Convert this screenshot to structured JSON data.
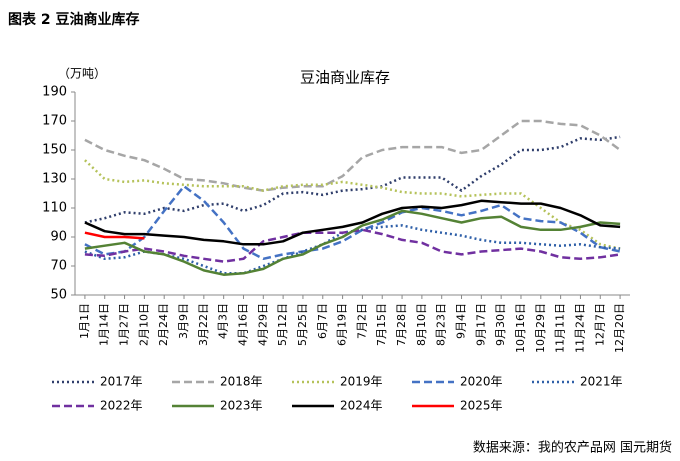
{
  "chart_data": {
    "type": "line",
    "figure_label": "图表 2 豆油商业库存",
    "title": "豆油商业库存",
    "y_label": "（万吨）",
    "source": "数据来源：我的农产品网 国元期货",
    "categories": [
      "1月1日",
      "1月14日",
      "1月27日",
      "2月10日",
      "2月24日",
      "3月9日",
      "3月22日",
      "4月3日",
      "4月16日",
      "4月29日",
      "5月12日",
      "5月25日",
      "6月7日",
      "6月19日",
      "7月2日",
      "7月15日",
      "7月28日",
      "8月10日",
      "8月23日",
      "9月4日",
      "9月17日",
      "9月30日",
      "10月16日",
      "10月29日",
      "11月11日",
      "11月24日",
      "12月7日",
      "12月20日"
    ],
    "ylim": [
      50,
      190
    ],
    "yticks": [
      50,
      70,
      90,
      110,
      130,
      150,
      170,
      190
    ],
    "series": [
      {
        "name": "2017年",
        "color": "#2f3e6b",
        "dash": "dot",
        "values": [
          100,
          103,
          107,
          106,
          110,
          108,
          112,
          113,
          108,
          112,
          120,
          121,
          119,
          122,
          123,
          125,
          131,
          131,
          131,
          122,
          132,
          140,
          150,
          150,
          152,
          158,
          157,
          159
        ]
      },
      {
        "name": "2018年",
        "color": "#a6a6a6",
        "dash": "dash",
        "values": [
          157,
          150,
          146,
          143,
          137,
          130,
          129,
          127,
          124,
          122,
          124,
          125,
          125,
          132,
          145,
          150,
          152,
          152,
          152,
          148,
          150,
          160,
          170,
          170,
          168,
          167,
          160,
          150
        ]
      },
      {
        "name": "2019年",
        "color": "#b5c25a",
        "dash": "dot",
        "values": [
          143,
          130,
          128,
          129,
          127,
          126,
          125,
          125,
          125,
          122,
          125,
          126,
          126,
          128,
          126,
          124,
          121,
          120,
          120,
          118,
          119,
          120,
          120,
          110,
          100,
          95,
          85,
          82
        ]
      },
      {
        "name": "2020年",
        "color": "#4472c4",
        "dash": "dash",
        "values": [
          85,
          78,
          80,
          90,
          108,
          125,
          115,
          100,
          82,
          75,
          78,
          80,
          82,
          87,
          95,
          100,
          107,
          110,
          108,
          105,
          108,
          112,
          103,
          101,
          100,
          93,
          83,
          80
        ]
      },
      {
        "name": "2021年",
        "color": "#2e5fa8",
        "dash": "dot",
        "values": [
          80,
          75,
          76,
          80,
          78,
          75,
          70,
          65,
          65,
          70,
          75,
          80,
          85,
          93,
          95,
          97,
          98,
          95,
          93,
          91,
          88,
          86,
          86,
          85,
          84,
          85,
          83,
          82
        ]
      },
      {
        "name": "2022年",
        "color": "#7030a0",
        "dash": "dash",
        "values": [
          78,
          77,
          80,
          82,
          80,
          77,
          75,
          73,
          75,
          87,
          90,
          93,
          93,
          93,
          95,
          92,
          88,
          86,
          80,
          78,
          80,
          81,
          82,
          80,
          76,
          75,
          76,
          78
        ]
      },
      {
        "name": "2023年",
        "color": "#548235",
        "dash": "solid",
        "values": [
          82,
          84,
          86,
          80,
          78,
          73,
          67,
          64,
          65,
          68,
          75,
          78,
          85,
          90,
          98,
          102,
          108,
          106,
          103,
          100,
          103,
          104,
          97,
          95,
          95,
          97,
          100,
          99
        ]
      },
      {
        "name": "2024年",
        "color": "#000000",
        "dash": "solid",
        "values": [
          100,
          94,
          92,
          92,
          91,
          90,
          88,
          87,
          85,
          85,
          87,
          93,
          95,
          97,
          100,
          106,
          110,
          111,
          110,
          112,
          115,
          114,
          113,
          113,
          110,
          105,
          98,
          97
        ]
      },
      {
        "name": "2025年",
        "color": "#ff0000",
        "dash": "solid",
        "values": [
          93,
          90,
          90,
          89,
          null,
          null,
          null,
          null,
          null,
          null,
          null,
          null,
          null,
          null,
          null,
          null,
          null,
          null,
          null,
          null,
          null,
          null,
          null,
          null,
          null,
          null,
          null,
          null
        ]
      }
    ]
  }
}
